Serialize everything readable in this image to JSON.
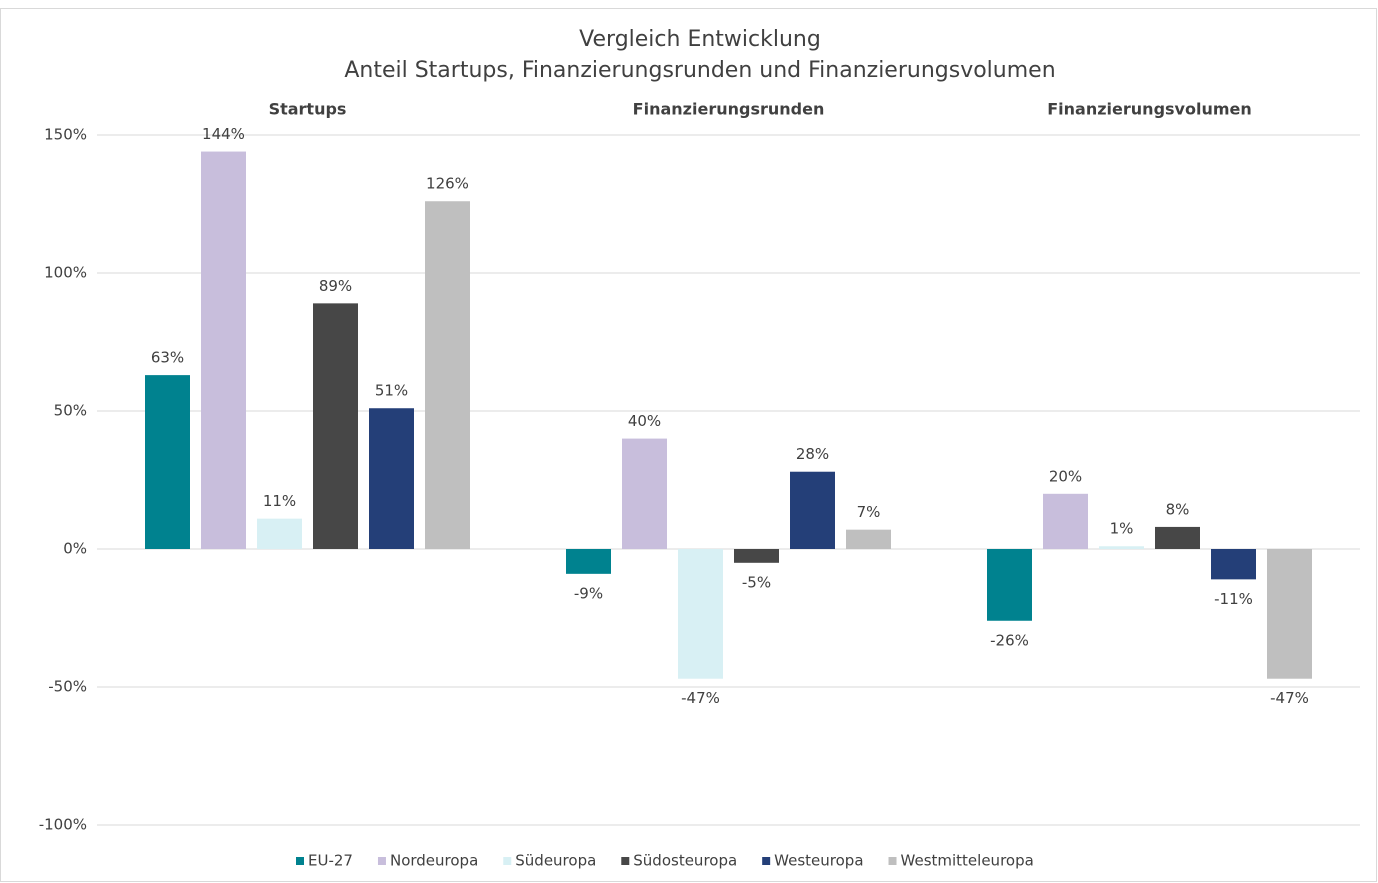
{
  "chart_data": {
    "type": "bar",
    "title": "Vergleich Entwicklung",
    "subtitle": "Anteil Startups, Finanzierungsrunden und Finanzierungsvolumen",
    "categories": [
      "Startups",
      "Finanzierungsrunden",
      "Finanzierungsvolumen"
    ],
    "series": [
      {
        "name": "EU-27",
        "color": "#00828f",
        "values": [
          63,
          -9,
          -26
        ],
        "value_labels": [
          "63%",
          "-9%",
          "-26%"
        ]
      },
      {
        "name": "Nordeuropa",
        "color": "#c8bedc",
        "values": [
          144,
          40,
          20
        ],
        "value_labels": [
          "144%",
          "40%",
          "20%"
        ]
      },
      {
        "name": "Südeuropa",
        "color": "#d8f0f4",
        "values": [
          11,
          -47,
          1
        ],
        "value_labels": [
          "11%",
          "-47%",
          "1%"
        ]
      },
      {
        "name": "Südosteuropa",
        "color": "#474747",
        "values": [
          89,
          -5,
          8
        ],
        "value_labels": [
          "89%",
          "-5%",
          "8%"
        ]
      },
      {
        "name": "Westeuropa",
        "color": "#243f78",
        "values": [
          51,
          28,
          -11
        ],
        "value_labels": [
          "51%",
          "28%",
          "-11%"
        ]
      },
      {
        "name": "Westmitteleuropa",
        "color": "#bfbfbf",
        "values": [
          126,
          7,
          -47
        ],
        "value_labels": [
          "126%",
          "7%",
          "-47%"
        ]
      }
    ],
    "ylim": [
      -100,
      150
    ],
    "yticks": [
      {
        "value": -100,
        "label": "-100%"
      },
      {
        "value": -50,
        "label": "-50%"
      },
      {
        "value": 0,
        "label": "0%"
      },
      {
        "value": 50,
        "label": "50%"
      },
      {
        "value": 100,
        "label": "100%"
      },
      {
        "value": 150,
        "label": "150%"
      }
    ],
    "grid": true,
    "legend": "bottom"
  }
}
